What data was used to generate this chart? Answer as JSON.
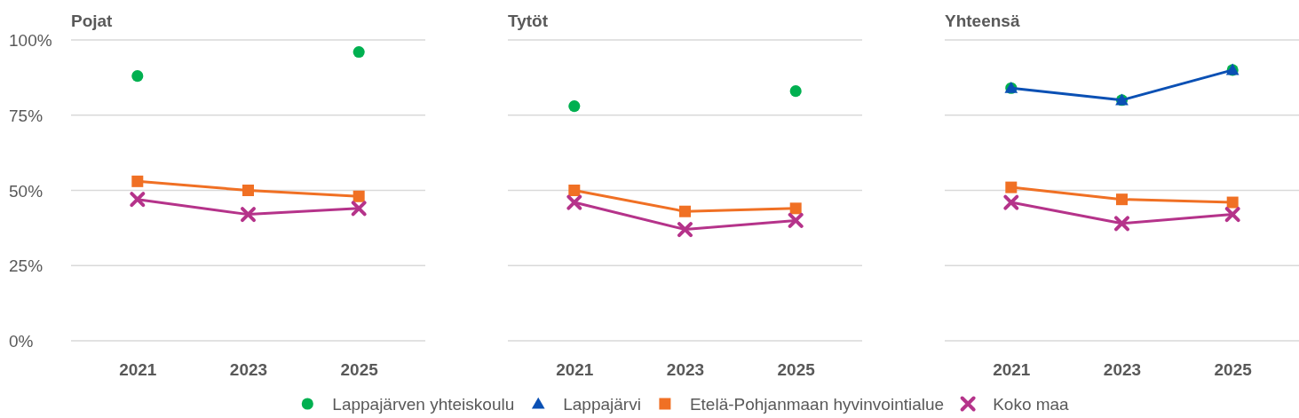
{
  "chart_data": [
    {
      "type": "line",
      "title": "Pojat",
      "categories": [
        "2021",
        "2023",
        "2025"
      ],
      "series": [
        {
          "type": "scatter",
          "marker": "circle",
          "color": "#00b050",
          "values": [
            88,
            null,
            96
          ]
        },
        {
          "marker": "square",
          "color": "#f07024",
          "values": [
            53,
            50,
            48
          ]
        },
        {
          "marker": "cross",
          "color": "#b5338a",
          "values": [
            47,
            42,
            44
          ]
        }
      ],
      "ylim": [
        0,
        100
      ],
      "yticks": [
        {
          "value": 0,
          "label": "0%"
        },
        {
          "value": 25,
          "label": "25%"
        },
        {
          "value": 50,
          "label": "50%"
        },
        {
          "value": 75,
          "label": "75%"
        },
        {
          "value": 100,
          "label": "100%"
        }
      ],
      "grid": "y"
    },
    {
      "type": "line",
      "title": "Tytöt",
      "categories": [
        "2021",
        "2023",
        "2025"
      ],
      "series": [
        {
          "name": "Lappajärven yhteiskoulu",
          "type": "scatter",
          "marker": "circle",
          "color": "#00b050",
          "values": [
            78,
            null,
            83
          ]
        },
        {
          "name": "Lappajärvi",
          "marker": "triangle",
          "color": "#0a50b4",
          "values": [
            null,
            null,
            null
          ]
        },
        {
          "name": "Etelä-Pohjanmaan hyvinvointialue",
          "marker": "square",
          "color": "#f07024",
          "values": [
            50,
            43,
            44
          ]
        },
        {
          "name": "Koko maa",
          "marker": "cross",
          "color": "#b5338a",
          "values": [
            46,
            37,
            40
          ]
        }
      ],
      "ylim": [
        0,
        100
      ],
      "yticks": [
        {
          "value": 0,
          "label": null
        },
        {
          "value": 25,
          "label": null
        },
        {
          "value": 50,
          "label": null
        },
        {
          "value": 75,
          "label": null
        },
        {
          "value": 100,
          "label": null
        }
      ],
      "grid": "y",
      "tick_labels": "x",
      "legend": "bottom"
    },
    {
      "type": "line",
      "title": "Yhteensä",
      "categories": [
        "2021",
        "2023",
        "2025"
      ],
      "series": [
        {
          "type": "scatter",
          "marker": "circle",
          "color": "#00b050",
          "values": [
            84,
            80,
            90
          ]
        },
        {
          "marker": "triangle",
          "color": "#0a50b4",
          "values": [
            84,
            80,
            90
          ]
        },
        {
          "marker": "square",
          "color": "#f07024",
          "values": [
            51,
            47,
            46
          ]
        },
        {
          "marker": "cross",
          "color": "#b5338a",
          "values": [
            46,
            39,
            42
          ]
        }
      ],
      "ylim": [
        0,
        100
      ],
      "yticks": [
        {
          "value": 0,
          "label": null
        },
        {
          "value": 25,
          "label": null
        },
        {
          "value": 50,
          "label": null
        },
        {
          "value": 75,
          "label": null
        },
        {
          "value": 100,
          "label": null
        }
      ],
      "grid": "y",
      "tick_labels": "x"
    }
  ]
}
